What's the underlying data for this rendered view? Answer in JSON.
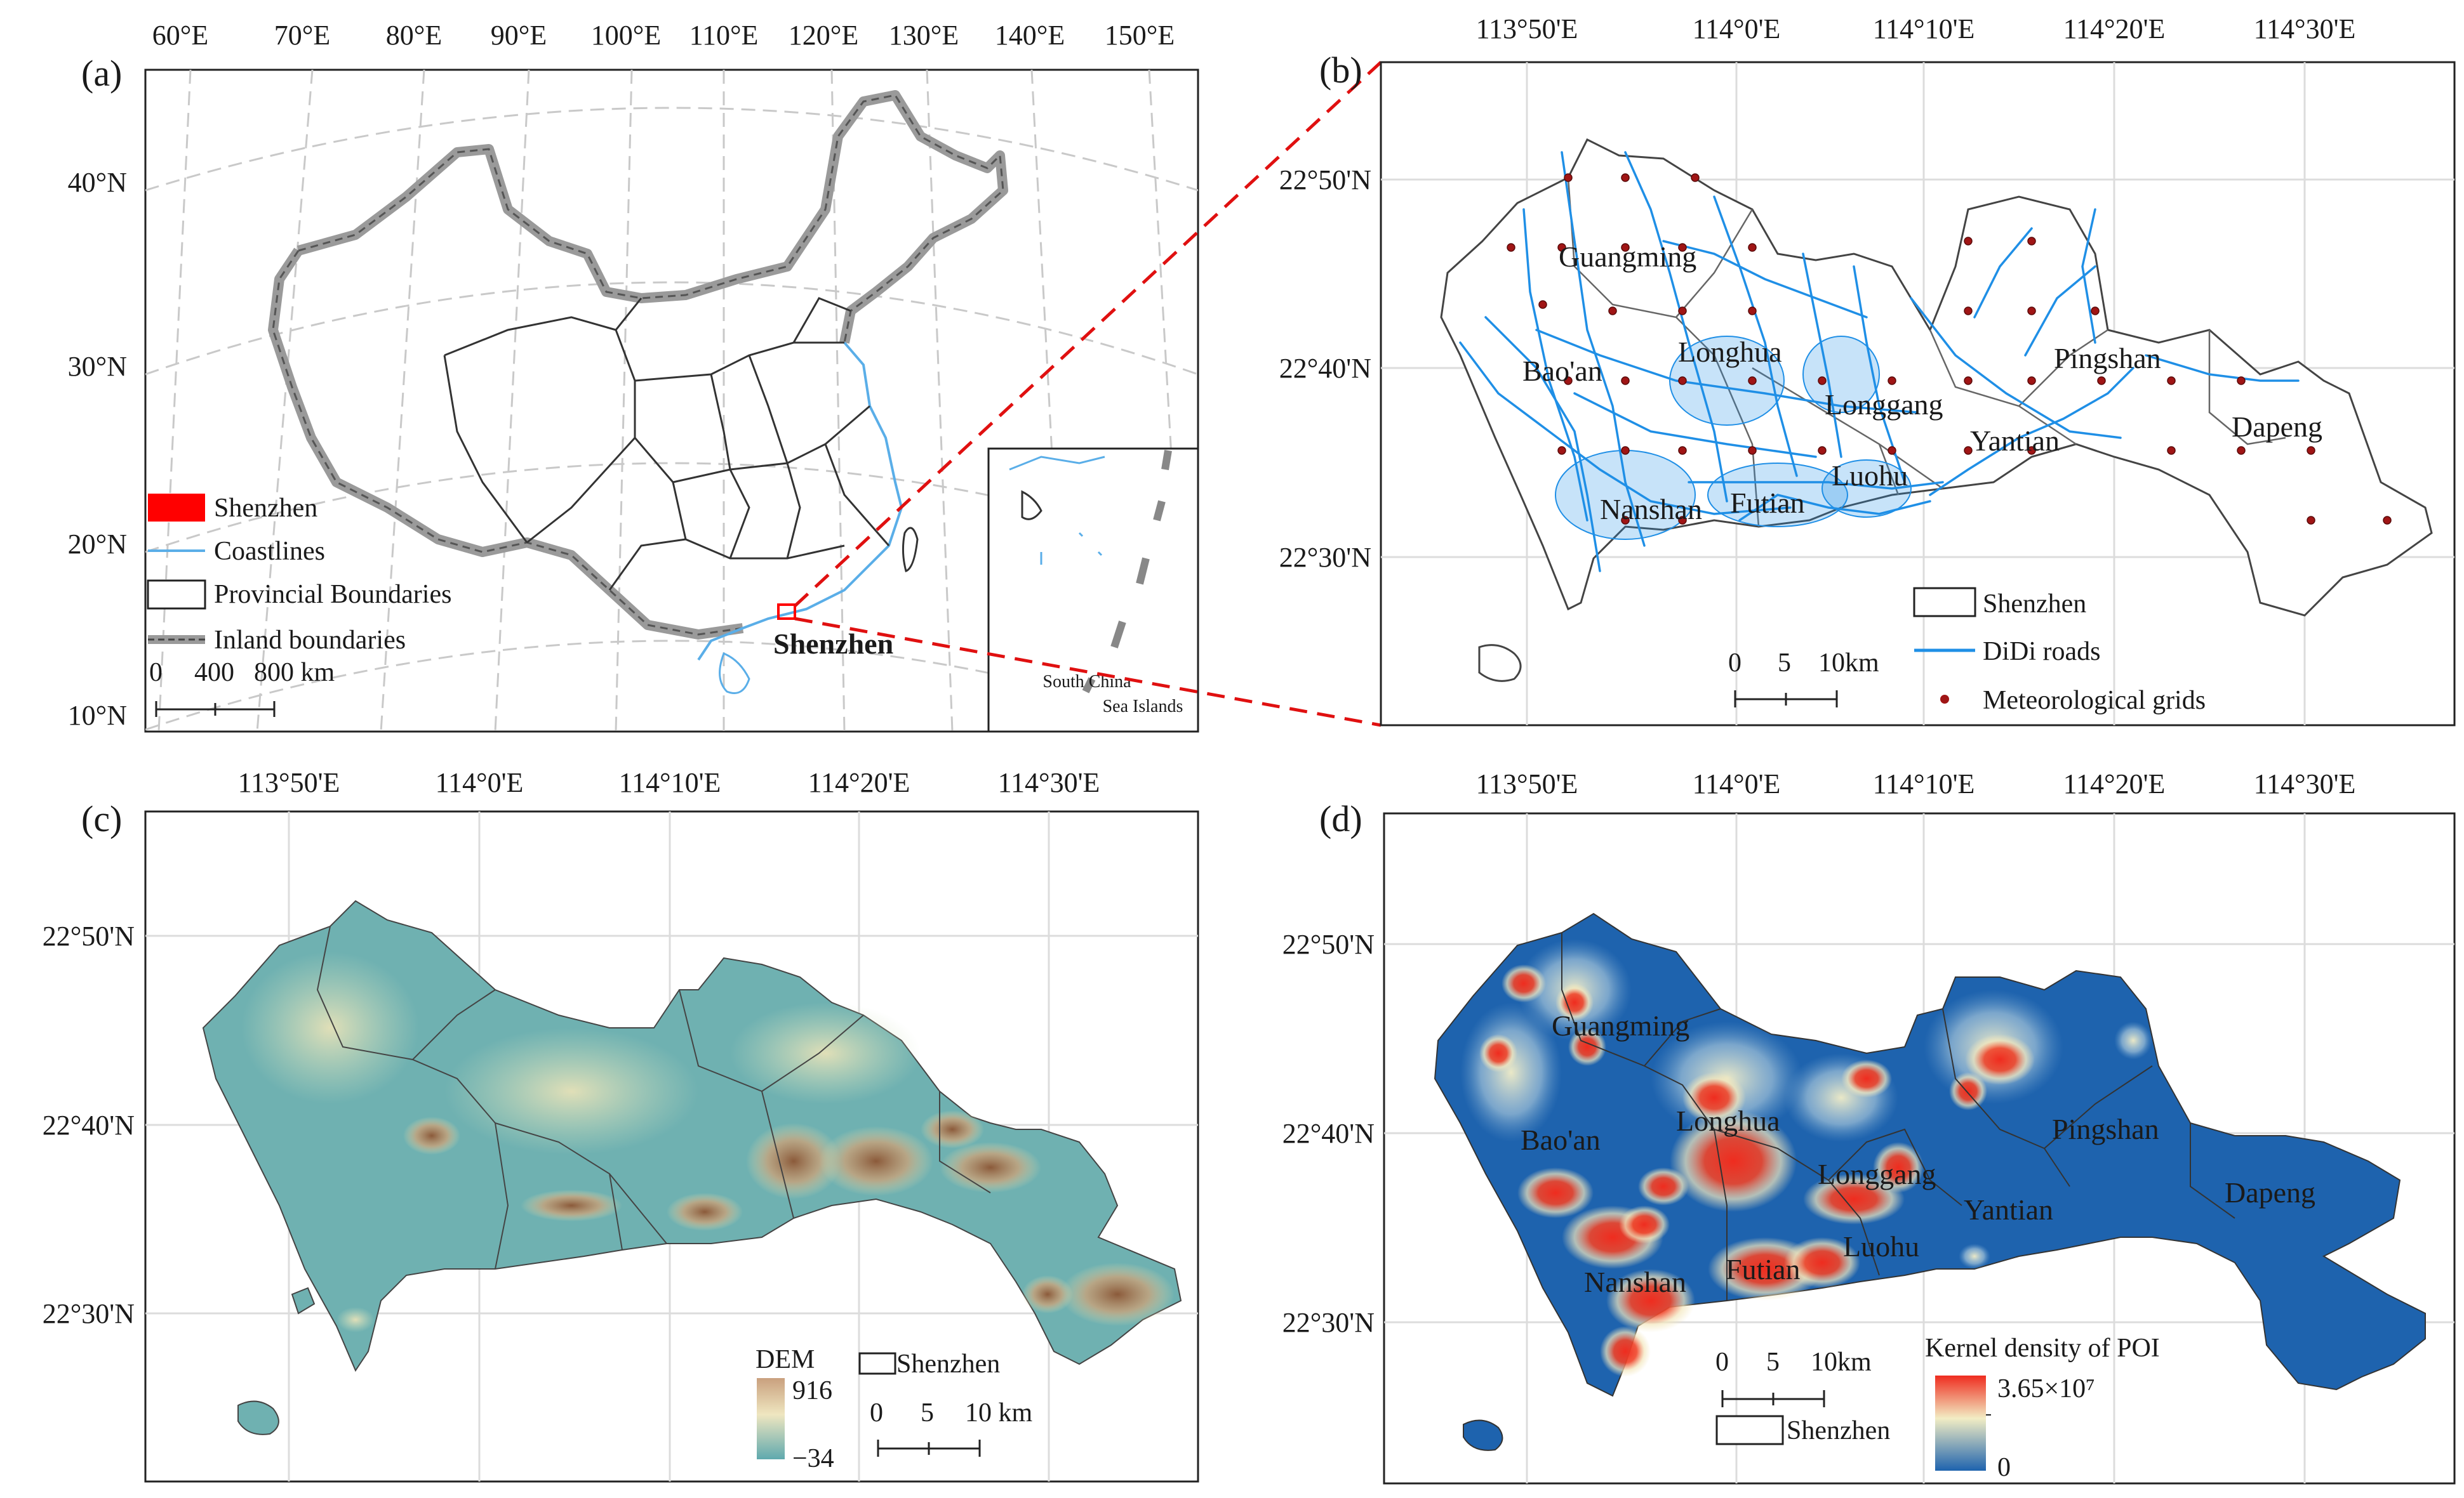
{
  "colors": {
    "shenzhen": "#ff0000",
    "coastline": "#5aaee8",
    "roads": "#1f8fe6",
    "met_point": "#a01515",
    "inland_boundary": "#8c8c8c",
    "graticule": "#c7c7c7",
    "dem_low": "#5fa9ae",
    "dem_mid": "#e8dfb0",
    "dem_high": "#8b5a3a",
    "kd_low": "#1e63ae",
    "kd_mid": "#f2edc4",
    "kd_high": "#ef2c1f"
  },
  "panel_a": {
    "label": "(a)",
    "lon_ticks": [
      "60°E",
      "70°E",
      "80°E",
      "90°E",
      "100°E",
      "110°E",
      "120°E",
      "130°E",
      "140°E",
      "150°E"
    ],
    "lat_ticks": [
      "40°N",
      "30°N",
      "20°N",
      "10°N"
    ],
    "legend": [
      "Shenzhen",
      "Coastlines",
      "Provincial Boundaries",
      "Inland boundaries"
    ],
    "scale": [
      "0",
      "400",
      "800 km"
    ],
    "city_label": "Shenzhen",
    "inset_label": [
      "South China",
      "Sea Islands"
    ]
  },
  "panel_b": {
    "label": "(b)",
    "lon_ticks": [
      "113°50'E",
      "114°0'E",
      "114°10'E",
      "114°20'E",
      "114°30'E"
    ],
    "lat_ticks": [
      "22°50'N",
      "22°40'N",
      "22°30'N"
    ],
    "districts": [
      "Guangming",
      "Bao'an",
      "Longhua",
      "Longgang",
      "Pingshan",
      "Yantian",
      "Luohu",
      "Nanshan",
      "Futian",
      "Dapeng"
    ],
    "legend": [
      "Shenzhen",
      "DiDi roads",
      "Meteorological grids"
    ],
    "scale": [
      "0",
      "5",
      "10km"
    ]
  },
  "panel_c": {
    "label": "(c)",
    "lon_ticks": [
      "113°50'E",
      "114°0'E",
      "114°10'E",
      "114°20'E",
      "114°30'E"
    ],
    "lat_ticks": [
      "22°50'N",
      "22°40'N",
      "22°30'N"
    ],
    "dem_title": "DEM",
    "dem_max": "916",
    "dem_min": "−34",
    "legend": [
      "Shenzhen"
    ],
    "scale": [
      "0",
      "5",
      "10 km"
    ]
  },
  "panel_d": {
    "label": "(d)",
    "lon_ticks": [
      "113°50'E",
      "114°0'E",
      "114°10'E",
      "114°20'E",
      "114°30'E"
    ],
    "lat_ticks": [
      "22°50'N",
      "22°40'N",
      "22°30'N"
    ],
    "districts": [
      "Guangming",
      "Bao'an",
      "Longhua",
      "Longgang",
      "Pingshan",
      "Yantian",
      "Luohu",
      "Nanshan",
      "Futian",
      "Dapeng"
    ],
    "kd_title": "Kernel density of POI",
    "kd_max": "3.65×10⁷",
    "kd_min": "0",
    "legend": [
      "Shenzhen"
    ],
    "scale": [
      "0",
      "5",
      "10km"
    ]
  }
}
